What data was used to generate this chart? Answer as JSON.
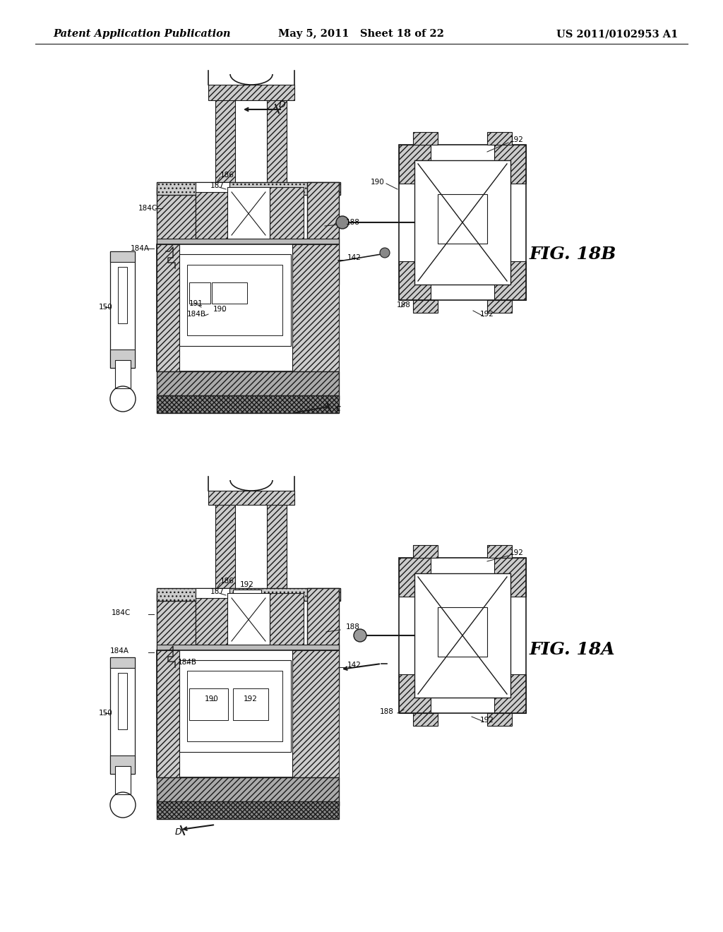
{
  "background_color": "#ffffff",
  "header_left": "Patent Application Publication",
  "header_center": "May 5, 2011   Sheet 18 of 22",
  "header_right": "US 2011/0102953 A1",
  "header_fontsize": 10.5,
  "fig_label_fontsize": 18,
  "anno_fontsize": 8,
  "line_color": "#1a1a1a",
  "hatch_color": "#333333",
  "fig18B_label": "FIG. 18B",
  "fig18A_label": "FIG. 18A"
}
